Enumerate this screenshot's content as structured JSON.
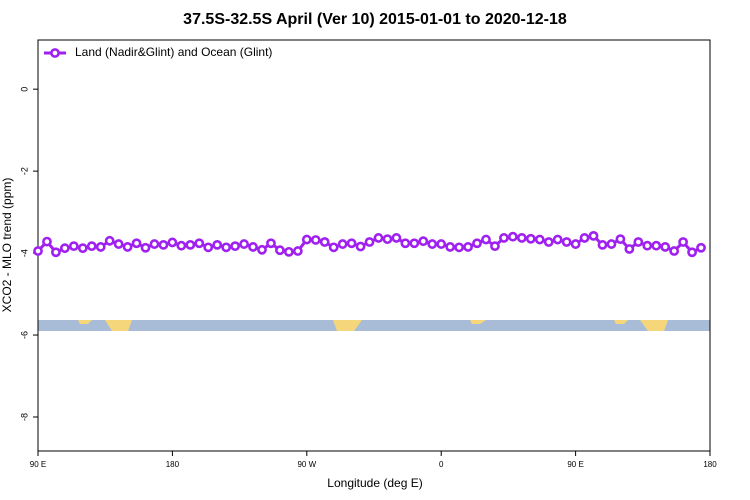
{
  "chart_data": {
    "type": "line",
    "title": "37.5S-32.5S April (Ver 10)   2015-01-01 to 2020-12-18",
    "x_label": "Longitude (deg E)",
    "y_label": "XCO2 - MLO trend (ppm)",
    "xlim": [
      90,
      540
    ],
    "xticks": [
      {
        "value": 90,
        "label": "90 E"
      },
      {
        "value": 180,
        "label": "180"
      },
      {
        "value": 270,
        "label": "90 W"
      },
      {
        "value": 360,
        "label": "0"
      },
      {
        "value": 450,
        "label": "90 E"
      },
      {
        "value": 540,
        "label": "180"
      }
    ],
    "ylim": [
      -8.83,
      1.2
    ],
    "yticks": [
      0,
      -2,
      -4,
      -6,
      -8
    ],
    "legend": "top-left",
    "x": [
      90,
      96,
      102,
      108,
      114,
      120,
      126,
      132,
      138,
      144,
      150,
      156,
      162,
      168,
      174,
      180,
      186,
      192,
      198,
      204,
      210,
      216,
      222,
      228,
      234,
      240,
      246,
      252,
      258,
      264,
      270,
      276,
      282,
      288,
      294,
      300,
      306,
      312,
      318,
      324,
      330,
      336,
      342,
      348,
      354,
      360,
      366,
      372,
      378,
      384,
      390,
      396,
      402,
      408,
      414,
      420,
      426,
      432,
      438,
      444,
      450,
      456,
      462,
      468,
      474,
      480,
      486,
      492,
      498,
      504,
      510,
      516,
      522,
      528,
      534
    ],
    "series": [
      {
        "name": "Land (Nadir&Glint) and Ocean (Glint)",
        "color": "#a020f0",
        "values": [
          -3.95,
          -3.72,
          -3.98,
          -3.88,
          -3.83,
          -3.88,
          -3.83,
          -3.85,
          -3.7,
          -3.78,
          -3.85,
          -3.76,
          -3.87,
          -3.78,
          -3.8,
          -3.74,
          -3.82,
          -3.8,
          -3.76,
          -3.86,
          -3.8,
          -3.86,
          -3.83,
          -3.78,
          -3.85,
          -3.92,
          -3.76,
          -3.93,
          -3.97,
          -3.95,
          -3.67,
          -3.68,
          -3.73,
          -3.86,
          -3.78,
          -3.76,
          -3.84,
          -3.73,
          -3.63,
          -3.66,
          -3.63,
          -3.76,
          -3.76,
          -3.71,
          -3.78,
          -3.78,
          -3.85,
          -3.86,
          -3.85,
          -3.76,
          -3.67,
          -3.83,
          -3.63,
          -3.6,
          -3.63,
          -3.65,
          -3.67,
          -3.73,
          -3.67,
          -3.73,
          -3.78,
          -3.63,
          -3.58,
          -3.8,
          -3.78,
          -3.66,
          -3.9,
          -3.73,
          -3.82,
          -3.82,
          -3.85,
          -3.95,
          -3.73,
          -3.98,
          -3.87
        ]
      }
    ]
  }
}
